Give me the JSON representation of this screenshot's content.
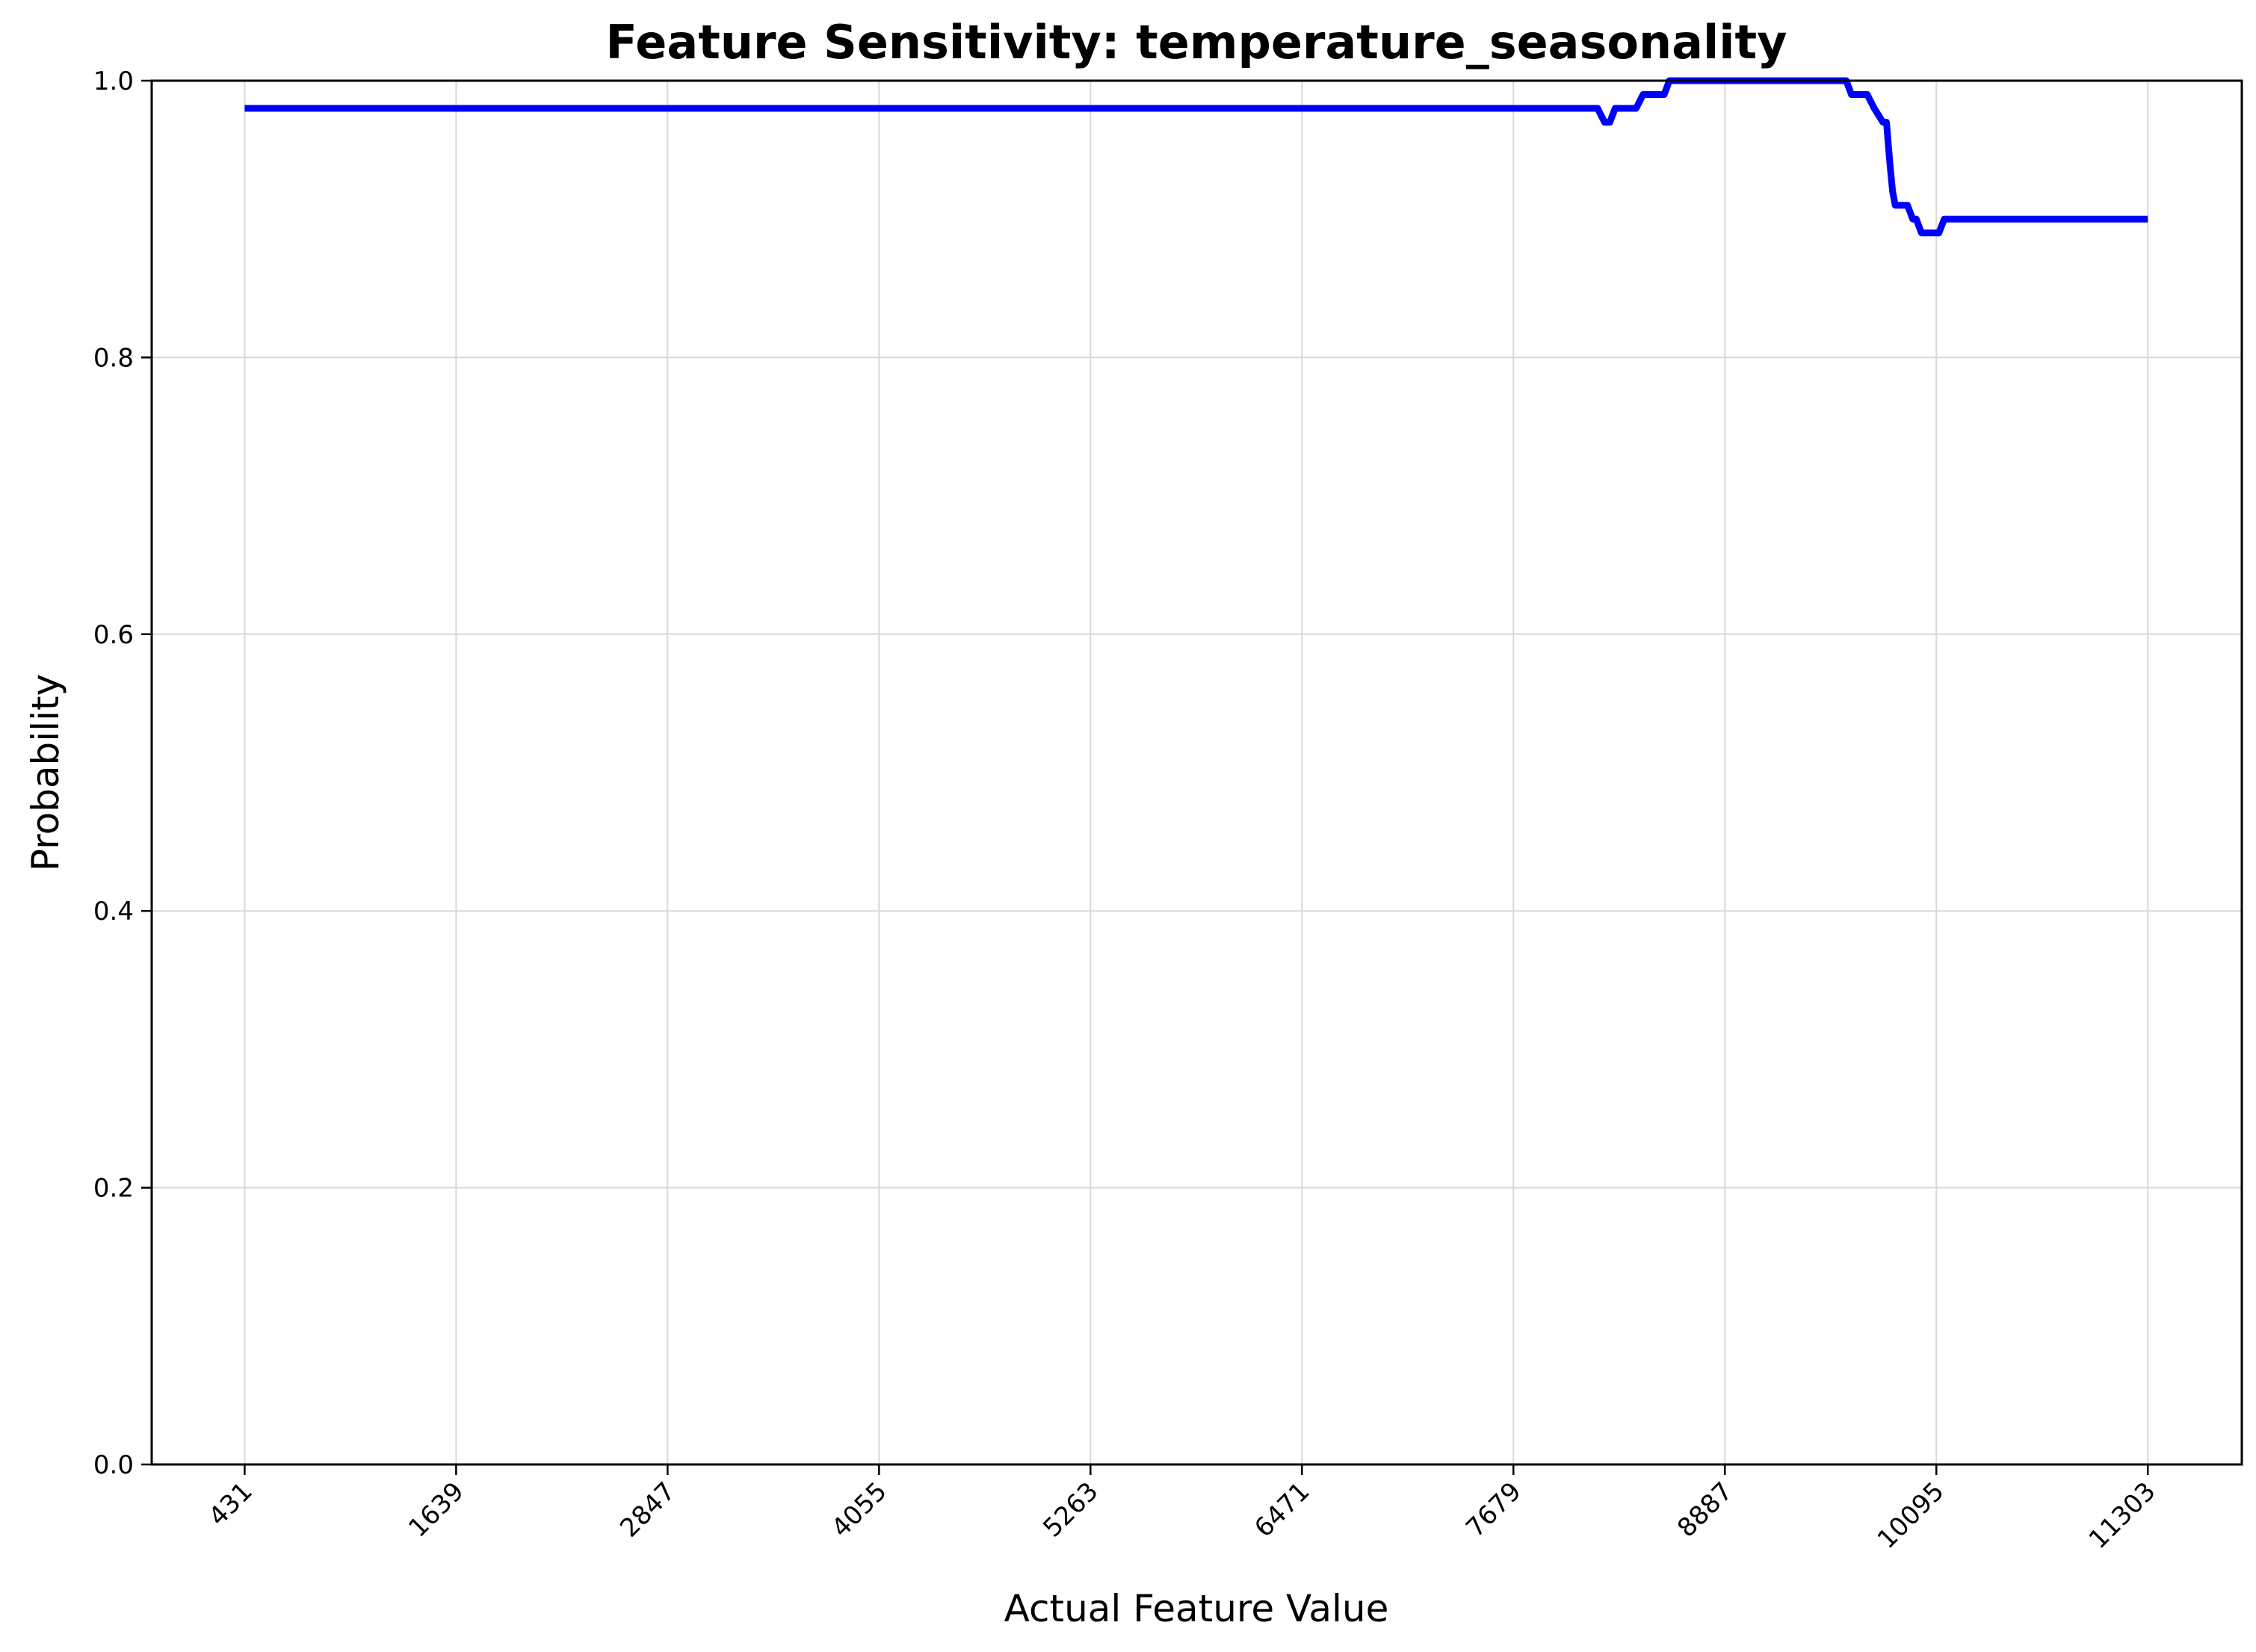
{
  "chart_data": {
    "type": "line",
    "title": "Feature Sensitivity: temperature_seasonality",
    "xlabel": "Actual Feature Value",
    "ylabel": "Probability",
    "xlim": [
      -100,
      11840
    ],
    "ylim": [
      0,
      1.0
    ],
    "grid": true,
    "x_ticks": [
      431,
      1639,
      2847,
      4055,
      5263,
      6471,
      7679,
      8887,
      10095,
      11303
    ],
    "y_ticks": [
      0.0,
      0.2,
      0.4,
      0.6,
      0.8,
      1.0
    ],
    "y_tick_labels": [
      "0.0",
      "0.2",
      "0.4",
      "0.6",
      "0.8",
      "1.0"
    ],
    "color": "#0000ff",
    "series": [
      {
        "x": [
          431,
          8160,
          8200,
          8230,
          8260,
          8290,
          8330,
          8380,
          8420,
          8460,
          8490,
          8540,
          8570,
          8610,
          8630,
          8660,
          8700,
          8800,
          9000,
          9300,
          9580,
          9610,
          9640,
          9700,
          9740,
          9790,
          9810,
          9830,
          9845,
          9860,
          9890,
          9930,
          9960,
          9980,
          10010,
          10040,
          10070,
          10110,
          10140,
          10170,
          10200,
          11303
        ],
        "y": [
          0.98,
          0.98,
          0.97,
          0.97,
          0.98,
          0.98,
          0.98,
          0.98,
          0.99,
          0.99,
          0.99,
          0.99,
          1.0,
          1.0,
          1.0,
          1.0,
          1.0,
          1.0,
          1.0,
          1.0,
          1.0,
          0.99,
          0.99,
          0.99,
          0.98,
          0.97,
          0.97,
          0.94,
          0.92,
          0.91,
          0.91,
          0.91,
          0.9,
          0.9,
          0.89,
          0.89,
          0.89,
          0.89,
          0.9,
          0.9,
          0.9,
          0.9
        ]
      }
    ]
  }
}
